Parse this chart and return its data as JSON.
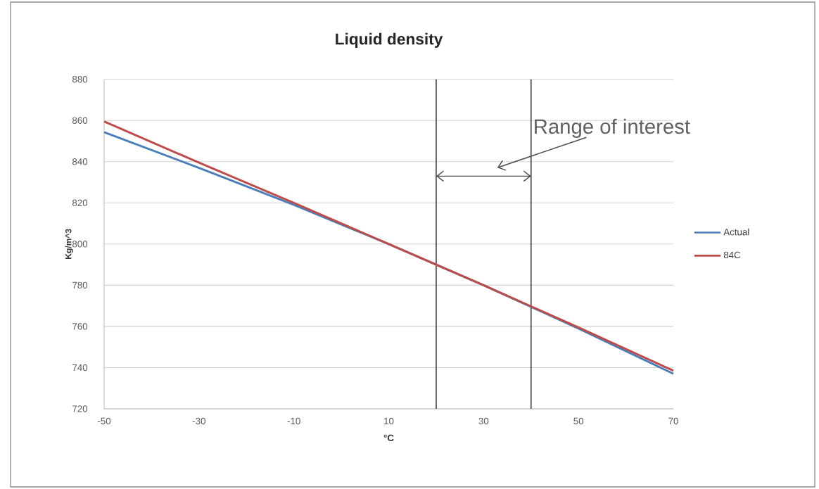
{
  "chart_data": {
    "type": "line",
    "title": "Liquid density",
    "xlabel": "°C",
    "ylabel": "Kg/m^3",
    "x": [
      -50,
      -30,
      -10,
      10,
      30,
      50,
      70
    ],
    "series": [
      {
        "name": "Actual",
        "color": "#4a7ebb",
        "values": [
          854.3,
          837,
          819,
          800,
          780,
          759,
          737
        ]
      },
      {
        "name": "84C",
        "color": "#be4b48",
        "values": [
          859.5,
          839.5,
          820,
          800,
          780,
          759.5,
          738.5
        ]
      }
    ],
    "xlim": [
      -50,
      70
    ],
    "xticks": [
      -50,
      -30,
      -10,
      10,
      30,
      50,
      70
    ],
    "ylim": [
      720,
      880
    ],
    "yticks": [
      720,
      740,
      760,
      780,
      800,
      820,
      840,
      860,
      880
    ],
    "ref_lines": [
      {
        "axis": "x",
        "value": 20,
        "color": "#404040"
      },
      {
        "axis": "x",
        "value": 40,
        "color": "#404040"
      }
    ],
    "annotations": [
      "Range of interest"
    ],
    "grid": "y",
    "legend": "right"
  }
}
